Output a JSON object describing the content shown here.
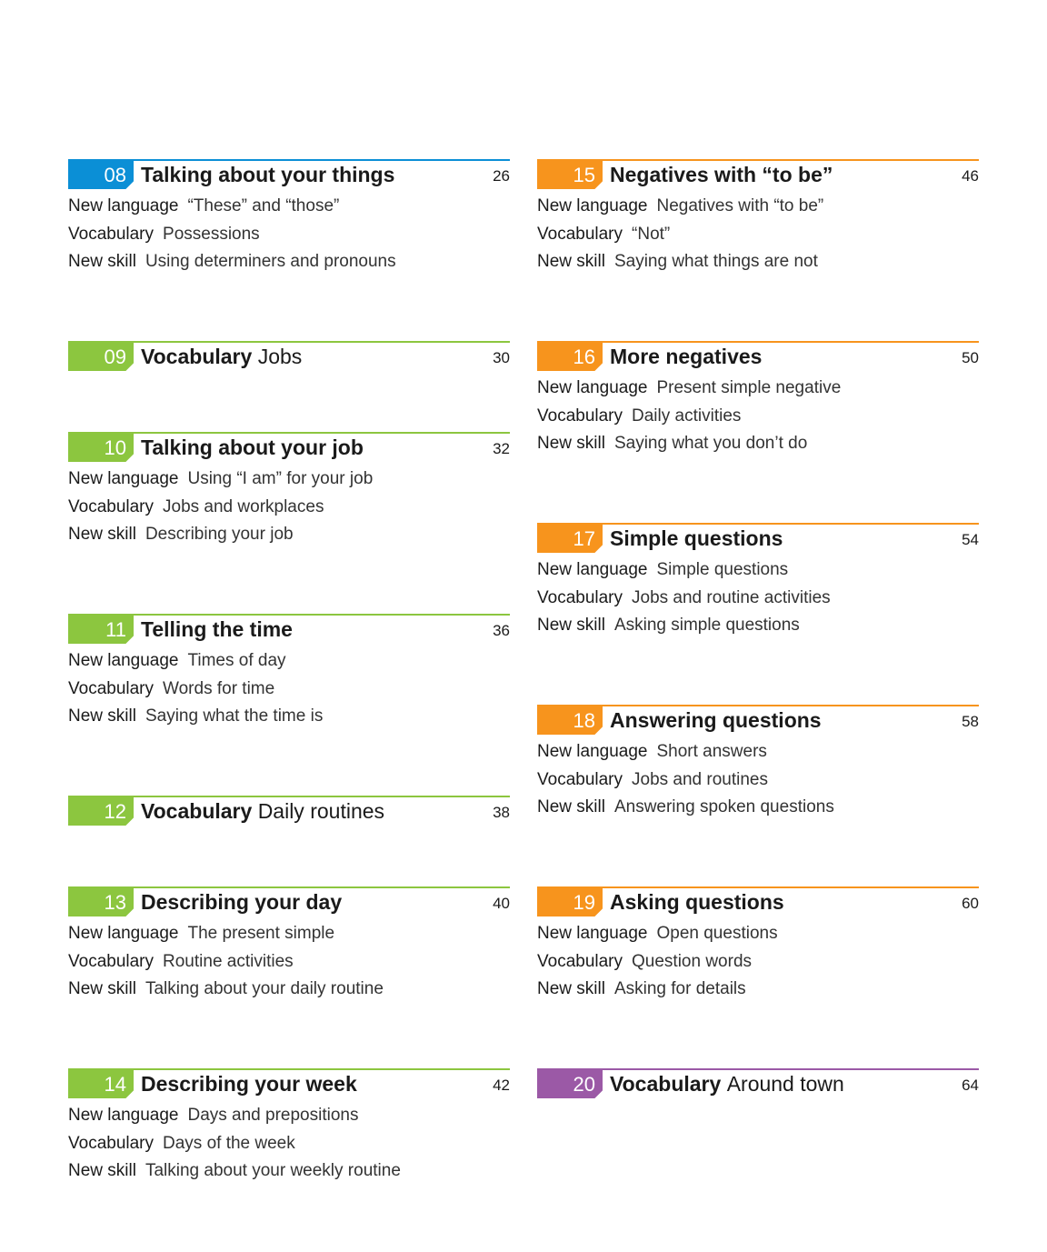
{
  "left_units": [
    {
      "num": "08",
      "title_bold": "Talking about your things",
      "title_plain": "",
      "page": "26",
      "color": "#0b8fd6",
      "lines": [
        {
          "label": "New language",
          "value": "“These” and “those”"
        },
        {
          "label": "Vocabulary",
          "value": "Possessions"
        },
        {
          "label": "New skill",
          "value": "Using determiners and pronouns"
        }
      ]
    },
    {
      "num": "09",
      "title_bold": "Vocabulary",
      "title_plain": "Jobs",
      "page": "30",
      "color": "#8cc63f",
      "lines": []
    },
    {
      "num": "10",
      "title_bold": "Talking about your job",
      "title_plain": "",
      "page": "32",
      "color": "#8cc63f",
      "lines": [
        {
          "label": "New language",
          "value": "Using “I am” for your job"
        },
        {
          "label": "Vocabulary",
          "value": "Jobs and workplaces"
        },
        {
          "label": "New skill",
          "value": "Describing your job"
        }
      ]
    },
    {
      "num": "11",
      "title_bold": "Telling the time",
      "title_plain": "",
      "page": "36",
      "color": "#8cc63f",
      "lines": [
        {
          "label": "New language",
          "value": "Times of day"
        },
        {
          "label": "Vocabulary",
          "value": "Words for time"
        },
        {
          "label": "New skill",
          "value": "Saying what the time is"
        }
      ]
    },
    {
      "num": "12",
      "title_bold": "Vocabulary",
      "title_plain": "Daily routines",
      "page": "38",
      "color": "#8cc63f",
      "lines": []
    },
    {
      "num": "13",
      "title_bold": "Describing your day",
      "title_plain": "",
      "page": "40",
      "color": "#8cc63f",
      "lines": [
        {
          "label": "New language",
          "value": "The present simple"
        },
        {
          "label": "Vocabulary",
          "value": "Routine activities"
        },
        {
          "label": "New skill",
          "value": "Talking about your daily routine"
        }
      ]
    },
    {
      "num": "14",
      "title_bold": "Describing your week",
      "title_plain": "",
      "page": "42",
      "color": "#8cc63f",
      "lines": [
        {
          "label": "New language",
          "value": "Days and prepositions"
        },
        {
          "label": "Vocabulary",
          "value": "Days of the week"
        },
        {
          "label": "New skill",
          "value": "Talking about your weekly routine"
        }
      ]
    }
  ],
  "right_units": [
    {
      "num": "15",
      "title_bold": "Negatives with “to be”",
      "title_plain": "",
      "page": "46",
      "color": "#f7941d",
      "lines": [
        {
          "label": "New language",
          "value": "Negatives with “to be”"
        },
        {
          "label": "Vocabulary",
          "value": "“Not”"
        },
        {
          "label": "New skill",
          "value": "Saying what things are not"
        }
      ]
    },
    {
      "num": "16",
      "title_bold": "More negatives",
      "title_plain": "",
      "page": "50",
      "color": "#f7941d",
      "lines": [
        {
          "label": "New language",
          "value": "Present simple negative"
        },
        {
          "label": "Vocabulary",
          "value": "Daily activities"
        },
        {
          "label": "New skill",
          "value": "Saying what you don’t do"
        }
      ]
    },
    {
      "num": "17",
      "title_bold": "Simple questions",
      "title_plain": "",
      "page": "54",
      "color": "#f7941d",
      "lines": [
        {
          "label": "New language",
          "value": "Simple questions"
        },
        {
          "label": "Vocabulary",
          "value": "Jobs and routine activities"
        },
        {
          "label": "New skill",
          "value": "Asking simple questions"
        }
      ]
    },
    {
      "num": "18",
      "title_bold": "Answering questions",
      "title_plain": "",
      "page": "58",
      "color": "#f7941d",
      "lines": [
        {
          "label": "New language",
          "value": "Short answers"
        },
        {
          "label": "Vocabulary",
          "value": "Jobs and routines"
        },
        {
          "label": "New skill",
          "value": "Answering spoken questions"
        }
      ]
    },
    {
      "num": "19",
      "title_bold": "Asking questions",
      "title_plain": "",
      "page": "60",
      "color": "#f7941d",
      "lines": [
        {
          "label": "New language",
          "value": "Open questions"
        },
        {
          "label": "Vocabulary",
          "value": "Question words"
        },
        {
          "label": "New skill",
          "value": "Asking for details"
        }
      ]
    },
    {
      "num": "20",
      "title_bold": "Vocabulary",
      "title_plain": "Around town",
      "page": "64",
      "color": "#9b59a6",
      "lines": []
    }
  ]
}
